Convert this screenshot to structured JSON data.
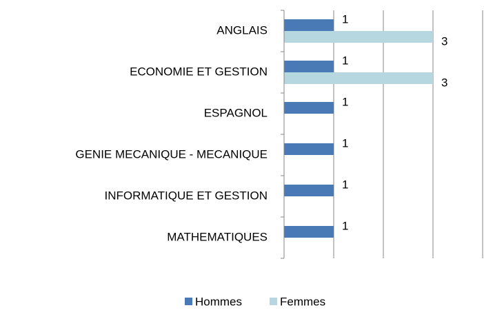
{
  "chart_data": {
    "type": "barh",
    "categories": [
      "ANGLAIS",
      "ECONOMIE ET GESTION",
      "ESPAGNOL",
      "GENIE MECANIQUE - MECANIQUE",
      "INFORMATIQUE ET GESTION",
      "MATHEMATIQUES"
    ],
    "series": [
      {
        "name": "Hommes",
        "color": "#4a7ab5",
        "values": [
          1,
          1,
          1,
          1,
          1,
          1
        ]
      },
      {
        "name": "Femmes",
        "color": "#b7d7e0",
        "values": [
          3,
          3,
          null,
          null,
          null,
          null
        ]
      }
    ],
    "xlim": [
      0,
      4
    ],
    "xticks": [
      0,
      1,
      2,
      3,
      4
    ],
    "grid": true,
    "legend": "bottom"
  }
}
